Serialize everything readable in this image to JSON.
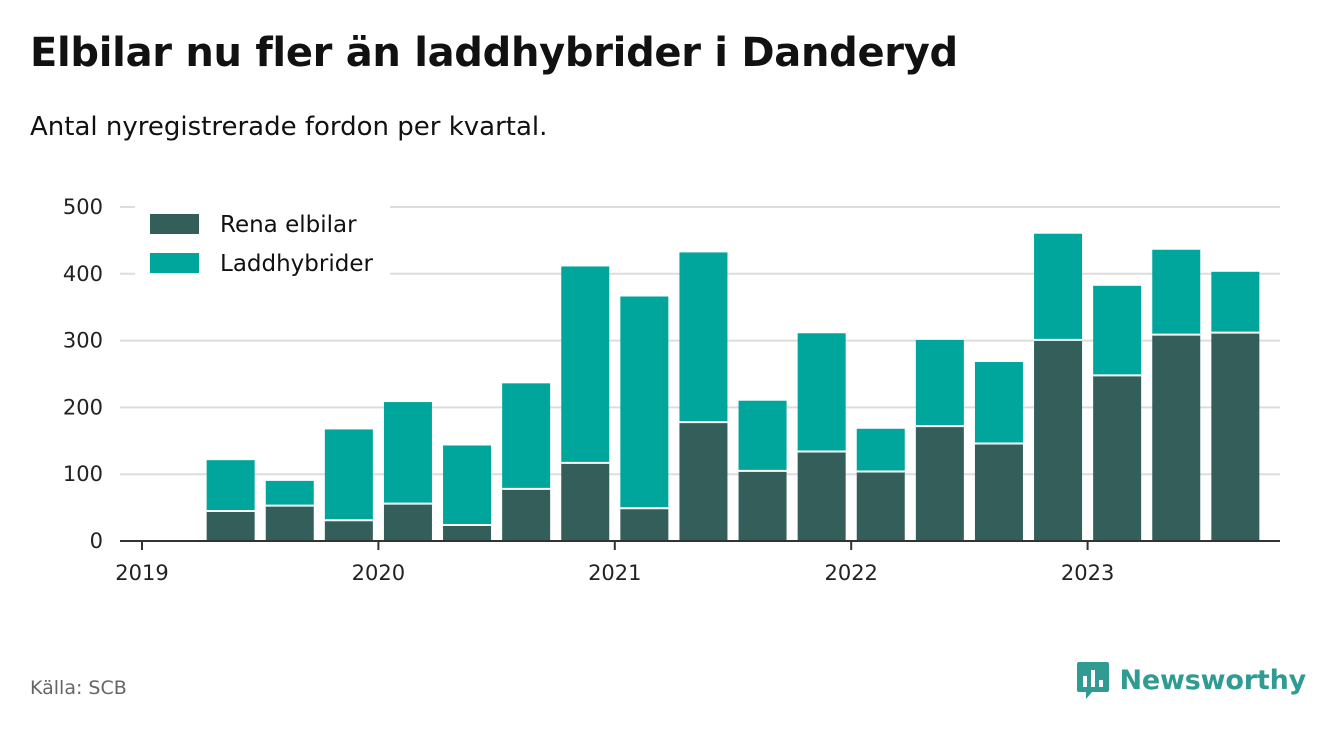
{
  "header": {
    "title": "Elbilar nu fler än laddhybrider i Danderyd",
    "subtitle": "Antal nyregistrerade fordon per kvartal."
  },
  "footer": {
    "source": "Källa: SCB",
    "brand": "Newsworthy",
    "brand_icon": "bar-chart-speech-bubble-icon"
  },
  "colors": {
    "electric": "#335e5a",
    "hybrid": "#00a59b",
    "grid": "#dddddd",
    "axis": "#333333",
    "brand": "#2f9b92"
  },
  "chart_data": {
    "type": "bar",
    "stacked": true,
    "title": "Elbilar nu fler än laddhybrider i Danderyd",
    "subtitle": "Antal nyregistrerade fordon per kvartal.",
    "xlabel": "",
    "ylabel": "",
    "ylim": [
      0,
      500
    ],
    "yticks": [
      0,
      100,
      200,
      300,
      400,
      500
    ],
    "xticks": [
      "2019",
      "2020",
      "2021",
      "2022",
      "2023"
    ],
    "grid": true,
    "legend": "top-left",
    "categories": [
      "2019 Q2",
      "2019 Q3",
      "2019 Q4",
      "2020 Q1",
      "2020 Q2",
      "2020 Q3",
      "2020 Q4",
      "2021 Q1",
      "2021 Q2",
      "2021 Q3",
      "2021 Q4",
      "2022 Q1",
      "2022 Q2",
      "2022 Q3",
      "2022 Q4",
      "2023 Q1",
      "2023 Q2",
      "2023 Q3"
    ],
    "series": [
      {
        "name": "Rena elbilar",
        "color": "#335e5a",
        "values": [
          45,
          53,
          31,
          56,
          24,
          78,
          117,
          49,
          178,
          105,
          134,
          104,
          172,
          146,
          301,
          248,
          309,
          312
        ]
      },
      {
        "name": "Laddhybrider",
        "color": "#00a59b",
        "values": [
          76,
          37,
          136,
          152,
          119,
          158,
          294,
          317,
          254,
          105,
          177,
          64,
          129,
          122,
          159,
          134,
          127,
          91
        ]
      }
    ]
  }
}
